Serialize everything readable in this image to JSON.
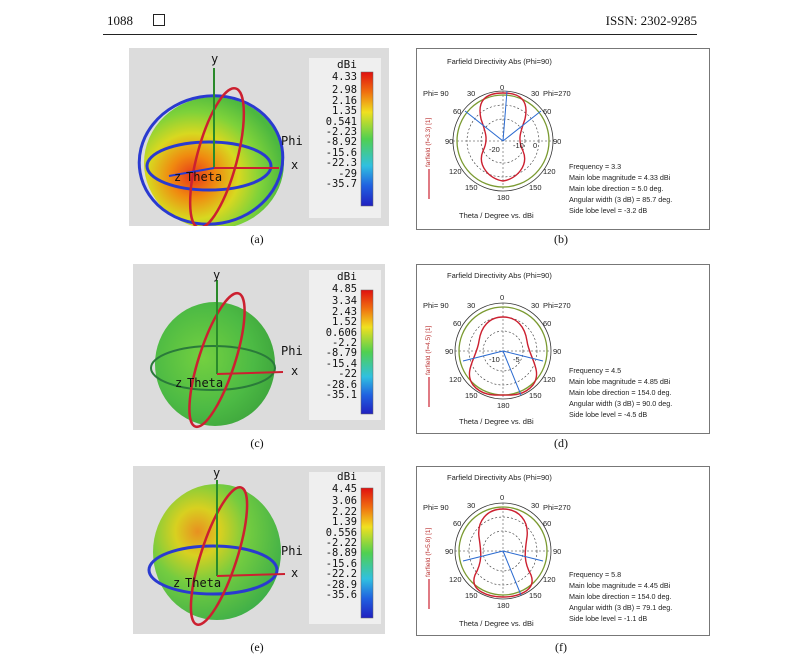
{
  "header": {
    "page_number": "1088",
    "issn": "ISSN: 2302-9285"
  },
  "panels_3d": [
    {
      "caption": "(a)",
      "unit": "dBi",
      "values": [
        "4.33",
        "2.98",
        "2.16",
        "1.35",
        "0.541",
        "-2.23",
        "-8.92",
        "-15.6",
        "-22.3",
        "-29",
        "-35.7"
      ],
      "axes": {
        "y": "y",
        "x": "x",
        "phi": "Phi",
        "theta": "Theta",
        "z": "z"
      }
    },
    {
      "caption": "(c)",
      "unit": "dBi",
      "values": [
        "4.85",
        "3.34",
        "2.43",
        "1.52",
        "0.606",
        "-2.2",
        "-8.79",
        "-15.4",
        "-22",
        "-28.6",
        "-35.1"
      ],
      "axes": {
        "y": "y",
        "x": "x",
        "phi": "Phi",
        "theta": "Theta",
        "z": "z"
      }
    },
    {
      "caption": "(e)",
      "unit": "dBi",
      "values": [
        "4.45",
        "3.06",
        "2.22",
        "1.39",
        "0.556",
        "-2.22",
        "-8.89",
        "-15.6",
        "-22.2",
        "-28.9",
        "-35.6"
      ],
      "axes": {
        "y": "y",
        "x": "x",
        "phi": "Phi",
        "theta": "Theta",
        "z": "z"
      }
    }
  ],
  "panels_polar": [
    {
      "caption": "(b)",
      "title": "Farfield Directivity Abs (Phi=90)",
      "series_label": "farfield (f=3.3) [1]",
      "info": [
        "Frequency = 3.3",
        "Main lobe magnitude =     4.33 dBi",
        "Main lobe direction =     5.0 deg.",
        "Angular width (3 dB) =   85.7 deg.",
        "Side lobe level =   -3.2 dB"
      ],
      "xlabel": "Theta / Degree vs. dBi"
    },
    {
      "caption": "(d)",
      "title": "Farfield Directivity Abs (Phi=90)",
      "series_label": "farfield (f=4.5) [1]",
      "info": [
        "Frequency = 4.5",
        "Main lobe magnitude =     4.85 dBi",
        "Main lobe direction =   154.0 deg.",
        "Angular width (3 dB) =   90.0 deg.",
        "Side lobe level =   -4.5 dB"
      ],
      "xlabel": "Theta / Degree vs. dBi"
    },
    {
      "caption": "(f)",
      "title": "Farfield Directivity Abs (Phi=90)",
      "series_label": "farfield (f=5.8) [1]",
      "info": [
        "Frequency = 5.8",
        "Main lobe magnitude =     4.45 dBi",
        "Main lobe direction =   154.0 deg.",
        "Angular width (3 dB) =   79.1 deg.",
        "Side lobe level =   -1.1 dB"
      ],
      "xlabel": "Theta / Degree vs. dBi"
    }
  ],
  "polar_labels": {
    "phi_left": "Phi= 90",
    "phi_right": "Phi=270",
    "angles": [
      "0",
      "30",
      "30",
      "60",
      "60",
      "90",
      "90",
      "120",
      "120",
      "150",
      "150",
      "180"
    ],
    "rings_b": [
      "-20",
      "-10",
      "0"
    ],
    "rings_d": [
      "-10",
      "-5"
    ]
  },
  "chart_data": {
    "type": "polar",
    "title": "Farfield Directivity Abs (Phi=90)",
    "xlabel": "Theta / Degree vs. dBi",
    "series": [
      {
        "name": "f=3.3",
        "main_lobe_magnitude_dBi": 4.33,
        "main_lobe_direction_deg": 5.0,
        "angular_width_3dB_deg": 85.7,
        "side_lobe_level_dB": -3.2
      },
      {
        "name": "f=4.5",
        "main_lobe_magnitude_dBi": 4.85,
        "main_lobe_direction_deg": 154.0,
        "angular_width_3dB_deg": 90.0,
        "side_lobe_level_dB": -4.5
      },
      {
        "name": "f=5.8",
        "main_lobe_magnitude_dBi": 4.45,
        "main_lobe_direction_deg": 154.0,
        "angular_width_3dB_deg": 79.1,
        "side_lobe_level_dB": -1.1
      }
    ]
  }
}
